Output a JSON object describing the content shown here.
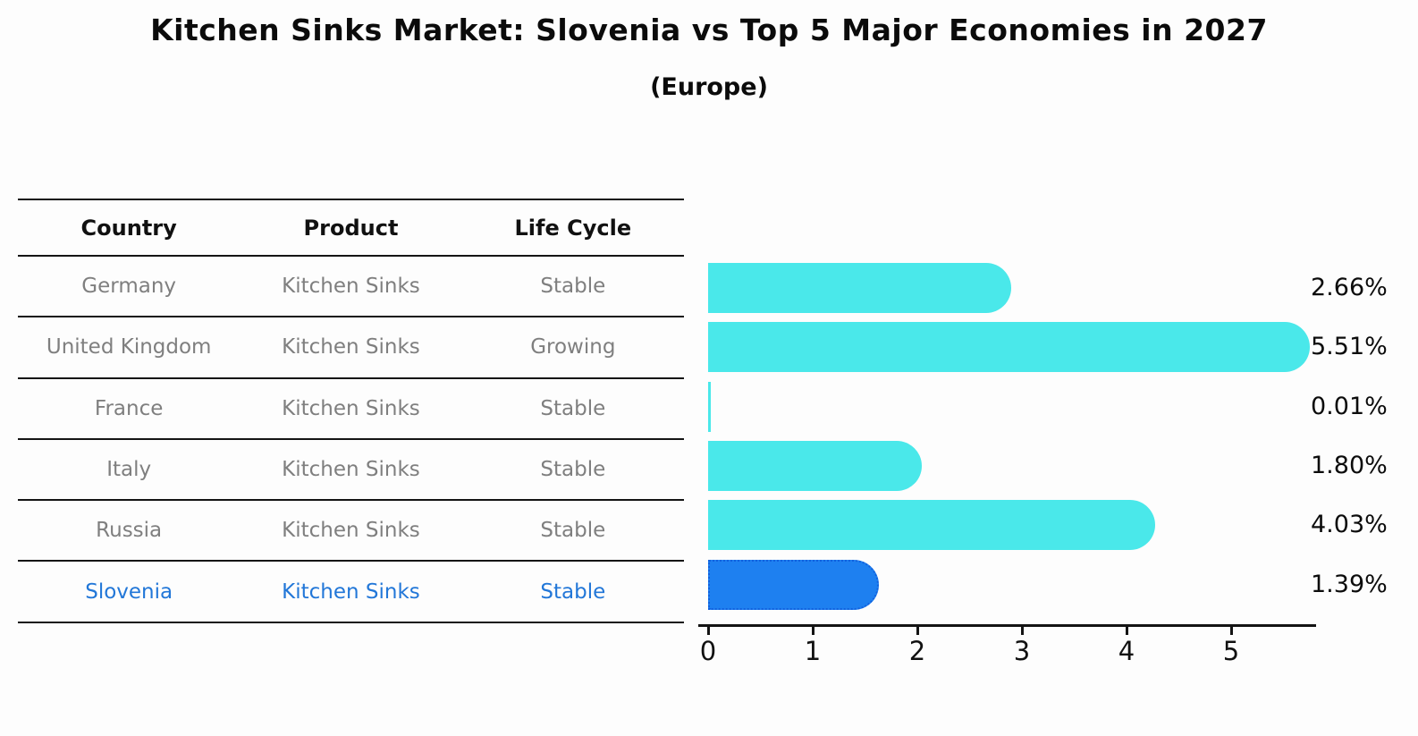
{
  "title": "Kitchen Sinks Market: Slovenia vs Top 5 Major Economies in 2027",
  "subtitle": "(Europe)",
  "table": {
    "headers": [
      "Country",
      "Product",
      "Life Cycle"
    ],
    "rows": [
      {
        "country": "Germany",
        "product": "Kitchen Sinks",
        "life_cycle": "Stable",
        "highlighted": false
      },
      {
        "country": "United Kingdom",
        "product": "Kitchen Sinks",
        "life_cycle": "Growing",
        "highlighted": false
      },
      {
        "country": "France",
        "product": "Kitchen Sinks",
        "life_cycle": "Stable",
        "highlighted": false
      },
      {
        "country": "Italy",
        "product": "Kitchen Sinks",
        "life_cycle": "Stable",
        "highlighted": false
      },
      {
        "country": "Russia",
        "product": "Kitchen Sinks",
        "life_cycle": "Stable",
        "highlighted": false
      },
      {
        "country": "Slovenia",
        "product": "Kitchen Sinks",
        "life_cycle": "Stable",
        "highlighted": true
      }
    ]
  },
  "chart_data": {
    "type": "bar",
    "orientation": "horizontal",
    "title": "Kitchen Sinks Market: Slovenia vs Top 5 Major Economies in 2027",
    "subtitle": "(Europe)",
    "categories": [
      "Germany",
      "United Kingdom",
      "France",
      "Italy",
      "Russia",
      "Slovenia"
    ],
    "values": [
      2.66,
      5.51,
      0.01,
      1.8,
      4.03,
      1.39
    ],
    "value_labels": [
      "2.66%",
      "5.51%",
      "0.01%",
      "1.80%",
      "4.03%",
      "1.39%"
    ],
    "xlabel": "",
    "ylabel": "",
    "x_ticks": [
      "0",
      "1",
      "2",
      "3",
      "4",
      "5"
    ],
    "xlim": [
      0,
      5.9
    ],
    "grid": false,
    "legend": false,
    "bar_color": "#4AE8EA",
    "highlight_bar_color": "#1E80F0",
    "highlight_index": 5,
    "highlight_style": "dotted-border"
  },
  "colors": {
    "background": "#fdfdfd",
    "bar": "#4AE8EA",
    "highlight_bar": "#1E80F0",
    "highlight_text": "#2277d8",
    "row_text": "#7f7f7f",
    "header_text": "#111111",
    "axis": "#141414",
    "dotted_border": "#1261de"
  }
}
